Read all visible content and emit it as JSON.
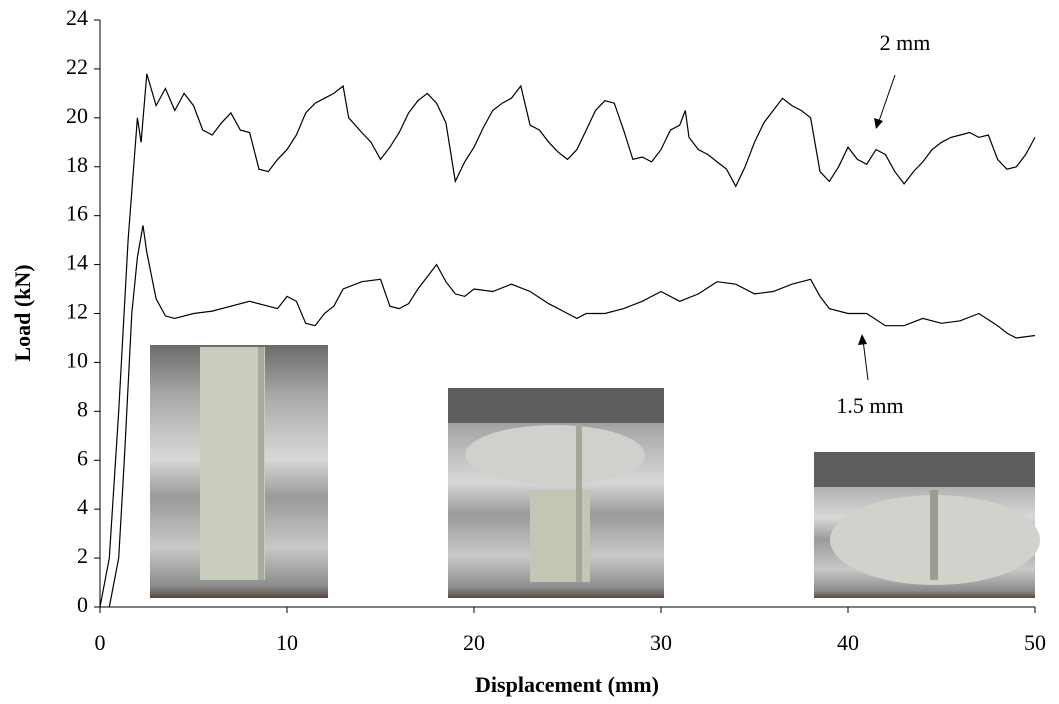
{
  "chart_data": {
    "type": "line",
    "xlabel": "Displacement (mm)",
    "ylabel": "Load (kN)",
    "xlim": [
      0,
      50
    ],
    "xticks": [
      0,
      10,
      20,
      30,
      40,
      50
    ],
    "ylim": [
      0,
      24
    ],
    "yticks": [
      0,
      2,
      4,
      6,
      8,
      10,
      12,
      14,
      16,
      18,
      20,
      22,
      24
    ],
    "series": [
      {
        "name": "2 mm",
        "color": "#000000",
        "x": [
          0,
          0.5,
          1,
          1.5,
          2,
          2.2,
          2.5,
          3,
          3.5,
          4,
          4.5,
          5,
          5.5,
          6,
          6.5,
          7,
          7.5,
          8,
          8.5,
          9,
          9.5,
          10,
          10.5,
          11,
          11.5,
          12,
          12.5,
          13,
          13.3,
          14,
          14.5,
          15,
          15.5,
          16,
          16.5,
          17,
          17.5,
          18,
          18.5,
          19,
          19.5,
          20,
          20.5,
          21,
          21.5,
          22,
          22.5,
          23,
          23.5,
          24,
          24.5,
          25,
          25.5,
          26,
          26.5,
          27,
          27.5,
          28,
          28.5,
          29,
          29.5,
          30,
          30.5,
          31,
          31.3,
          31.5,
          32,
          32.5,
          33,
          33.5,
          34,
          34.5,
          35,
          35.5,
          36,
          36.5,
          37,
          37.5,
          38,
          38.5,
          39,
          39.5,
          40,
          40.5,
          41,
          41.5,
          42,
          42.5,
          43,
          43.5,
          44,
          44.5,
          45,
          45.5,
          46,
          46.5,
          47,
          47.5,
          48,
          48.5,
          49,
          49.5,
          50
        ],
        "values": [
          0,
          2,
          8,
          15,
          20,
          19,
          21.8,
          20.5,
          21.2,
          20.3,
          21,
          20.5,
          19.5,
          19.3,
          19.8,
          20.2,
          19.5,
          19.4,
          17.9,
          17.8,
          18.3,
          18.7,
          19.3,
          20.2,
          20.6,
          20.8,
          21,
          21.3,
          20,
          19.4,
          19,
          18.3,
          18.8,
          19.4,
          20.2,
          20.7,
          21,
          20.6,
          19.8,
          17.4,
          18.2,
          18.8,
          19.6,
          20.3,
          20.6,
          20.8,
          21.3,
          19.7,
          19.5,
          19,
          18.6,
          18.3,
          18.7,
          19.5,
          20.3,
          20.7,
          20.6,
          19.5,
          18.3,
          18.4,
          18.2,
          18.7,
          19.5,
          19.7,
          20.3,
          19.2,
          18.7,
          18.5,
          18.2,
          17.9,
          17.2,
          18,
          19,
          19.8,
          20.3,
          20.8,
          20.5,
          20.3,
          20,
          17.8,
          17.4,
          18,
          18.8,
          18.3,
          18.1,
          18.7,
          18.5,
          17.8,
          17.3,
          17.8,
          18.2,
          18.7,
          19,
          19.2,
          19.3,
          19.4,
          19.2,
          19.3,
          18.3,
          17.9,
          18,
          18.5,
          19.2
        ]
      },
      {
        "name": "1.5 mm",
        "color": "#000000",
        "x": [
          0.5,
          1,
          1.3,
          1.7,
          2,
          2.3,
          2.5,
          3,
          3.5,
          4,
          5,
          6,
          7,
          8,
          9,
          9.5,
          10,
          10.5,
          11,
          11.5,
          12,
          12.5,
          13,
          14,
          15,
          15.5,
          16,
          16.5,
          17,
          17.5,
          18,
          18.5,
          19,
          19.5,
          20,
          21,
          22,
          23,
          24,
          25,
          25.5,
          26,
          27,
          28,
          29,
          30,
          31,
          32,
          33,
          34,
          35,
          36,
          37,
          38,
          38.5,
          39,
          40,
          41,
          42,
          43,
          44,
          45,
          46,
          47,
          48,
          48.5,
          49,
          50
        ],
        "values": [
          0,
          2,
          6,
          12,
          14.3,
          15.6,
          14.5,
          12.6,
          11.9,
          11.8,
          12,
          12.1,
          12.3,
          12.5,
          12.3,
          12.2,
          12.7,
          12.5,
          11.6,
          11.5,
          12,
          12.3,
          13,
          13.3,
          13.4,
          12.3,
          12.2,
          12.4,
          13,
          13.5,
          14,
          13.3,
          12.8,
          12.7,
          13,
          12.9,
          13.2,
          12.9,
          12.4,
          12,
          11.8,
          12,
          12,
          12.2,
          12.5,
          12.9,
          12.5,
          12.8,
          13.3,
          13.2,
          12.8,
          12.9,
          13.2,
          13.4,
          12.7,
          12.2,
          12,
          12,
          11.5,
          11.5,
          11.8,
          11.6,
          11.7,
          12,
          11.5,
          11.2,
          11,
          11.1
        ]
      }
    ]
  }
}
